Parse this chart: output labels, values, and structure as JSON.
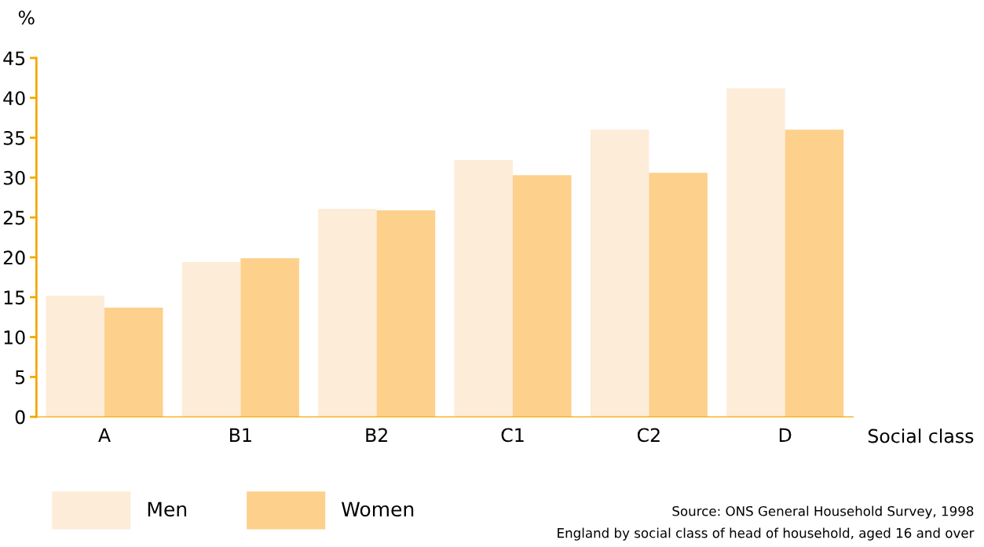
{
  "chart_data": {
    "type": "bar",
    "ylabel": "%",
    "xlabel": "Social class",
    "categories": [
      "A",
      "B1",
      "B2",
      "C1",
      "C2",
      "D"
    ],
    "series": [
      {
        "name": "Men",
        "color": "#fdecd8",
        "values": [
          15.2,
          19.4,
          26.1,
          32.2,
          36.0,
          41.2
        ]
      },
      {
        "name": "Women",
        "color": "#fdd08c",
        "values": [
          13.7,
          19.9,
          25.9,
          30.3,
          30.6,
          36.0
        ]
      }
    ],
    "ylim": [
      0,
      45
    ],
    "yticks": [
      0,
      5,
      10,
      15,
      20,
      25,
      30,
      35,
      40,
      45
    ],
    "grid": false,
    "legend": "bottom left",
    "annotations": [
      "Source: ONS General Household Survey, 1998",
      "England by social class of head of household, aged 16 and over"
    ]
  }
}
